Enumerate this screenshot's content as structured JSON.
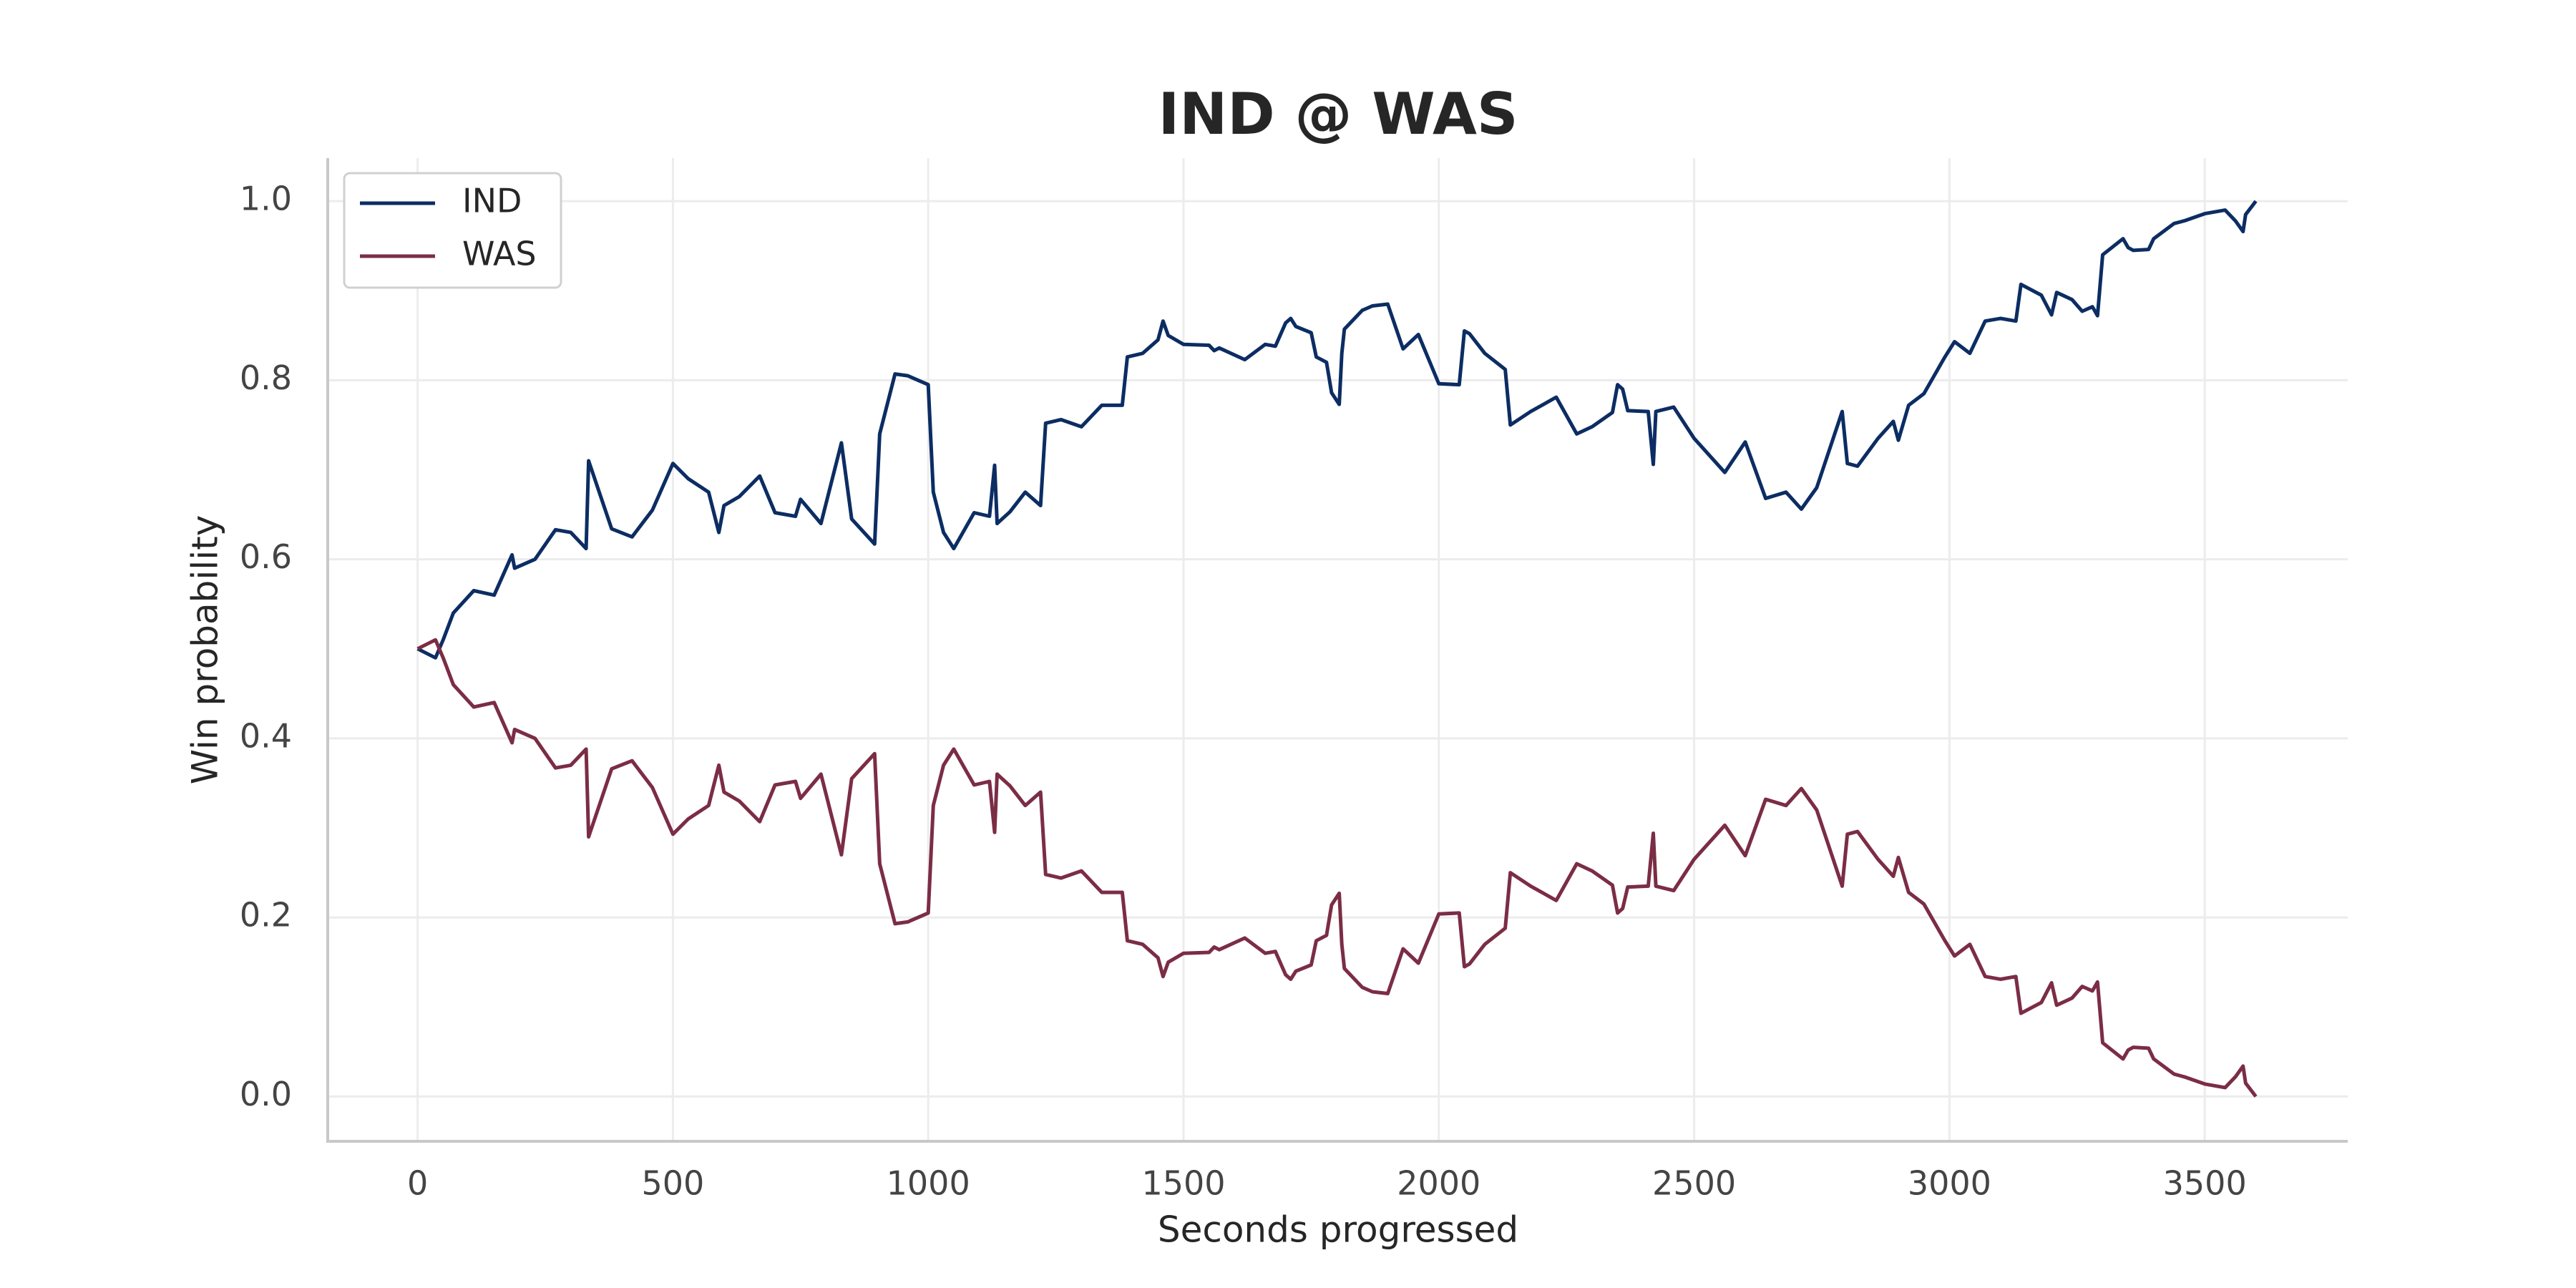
{
  "chart_data": {
    "type": "line",
    "title": "IND @ WAS",
    "x_label": "Seconds progressed",
    "y_label": "Win probability",
    "x": [
      0,
      35,
      50,
      70,
      110,
      150,
      185,
      190,
      230,
      270,
      300,
      330,
      335,
      380,
      420,
      460,
      500,
      530,
      570,
      590,
      600,
      630,
      670,
      700,
      740,
      750,
      790,
      830,
      850,
      895,
      905,
      935,
      960,
      1000,
      1010,
      1030,
      1050,
      1090,
      1120,
      1130,
      1135,
      1160,
      1190,
      1220,
      1230,
      1260,
      1300,
      1340,
      1380,
      1390,
      1420,
      1450,
      1460,
      1470,
      1500,
      1550,
      1560,
      1570,
      1620,
      1660,
      1680,
      1700,
      1710,
      1720,
      1750,
      1760,
      1780,
      1790,
      1805,
      1810,
      1815,
      1850,
      1870,
      1900,
      1930,
      1960,
      2000,
      2040,
      2050,
      2060,
      2090,
      2130,
      2140,
      2180,
      2230,
      2270,
      2300,
      2340,
      2350,
      2360,
      2370,
      2410,
      2420,
      2425,
      2460,
      2500,
      2560,
      2600,
      2640,
      2680,
      2710,
      2740,
      2790,
      2800,
      2820,
      2860,
      2890,
      2900,
      2920,
      2950,
      2990,
      3010,
      3040,
      3070,
      3100,
      3130,
      3140,
      3180,
      3200,
      3210,
      3240,
      3260,
      3280,
      3290,
      3300,
      3340,
      3350,
      3360,
      3390,
      3400,
      3440,
      3460,
      3500,
      3540,
      3560,
      3575,
      3580,
      3600
    ],
    "series": [
      {
        "name": "IND",
        "color": "#0c2d63",
        "values": [
          0.5,
          0.49,
          0.51,
          0.54,
          0.565,
          0.56,
          0.605,
          0.59,
          0.6,
          0.633,
          0.63,
          0.612,
          0.71,
          0.634,
          0.625,
          0.655,
          0.707,
          0.69,
          0.675,
          0.63,
          0.66,
          0.67,
          0.693,
          0.652,
          0.648,
          0.667,
          0.64,
          0.73,
          0.645,
          0.617,
          0.74,
          0.807,
          0.805,
          0.795,
          0.675,
          0.63,
          0.612,
          0.652,
          0.648,
          0.705,
          0.64,
          0.653,
          0.675,
          0.66,
          0.752,
          0.756,
          0.748,
          0.772,
          0.772,
          0.826,
          0.83,
          0.845,
          0.866,
          0.85,
          0.84,
          0.839,
          0.833,
          0.836,
          0.823,
          0.84,
          0.838,
          0.864,
          0.869,
          0.86,
          0.853,
          0.826,
          0.82,
          0.786,
          0.773,
          0.83,
          0.857,
          0.878,
          0.883,
          0.885,
          0.835,
          0.851,
          0.796,
          0.795,
          0.855,
          0.852,
          0.83,
          0.812,
          0.75,
          0.765,
          0.781,
          0.74,
          0.748,
          0.764,
          0.795,
          0.79,
          0.766,
          0.765,
          0.706,
          0.765,
          0.77,
          0.735,
          0.697,
          0.731,
          0.668,
          0.675,
          0.656,
          0.68,
          0.765,
          0.707,
          0.704,
          0.735,
          0.754,
          0.733,
          0.772,
          0.785,
          0.825,
          0.843,
          0.83,
          0.866,
          0.869,
          0.866,
          0.907,
          0.895,
          0.873,
          0.898,
          0.89,
          0.877,
          0.882,
          0.872,
          0.94,
          0.958,
          0.948,
          0.945,
          0.946,
          0.958,
          0.975,
          0.978,
          0.986,
          0.99,
          0.978,
          0.966,
          0.985,
          1.0
        ]
      },
      {
        "name": "WAS",
        "color": "#7b2d45",
        "values": [
          0.5,
          0.51,
          0.49,
          0.46,
          0.435,
          0.44,
          0.395,
          0.41,
          0.4,
          0.367,
          0.37,
          0.388,
          0.29,
          0.366,
          0.375,
          0.345,
          0.293,
          0.31,
          0.325,
          0.37,
          0.34,
          0.33,
          0.307,
          0.348,
          0.352,
          0.333,
          0.36,
          0.27,
          0.355,
          0.383,
          0.26,
          0.193,
          0.195,
          0.205,
          0.325,
          0.37,
          0.388,
          0.348,
          0.352,
          0.295,
          0.36,
          0.347,
          0.325,
          0.34,
          0.248,
          0.244,
          0.252,
          0.228,
          0.228,
          0.174,
          0.17,
          0.155,
          0.134,
          0.15,
          0.16,
          0.161,
          0.167,
          0.164,
          0.177,
          0.16,
          0.162,
          0.136,
          0.131,
          0.14,
          0.147,
          0.174,
          0.18,
          0.214,
          0.227,
          0.17,
          0.143,
          0.122,
          0.117,
          0.115,
          0.165,
          0.149,
          0.204,
          0.205,
          0.145,
          0.148,
          0.17,
          0.188,
          0.25,
          0.235,
          0.219,
          0.26,
          0.252,
          0.236,
          0.205,
          0.21,
          0.234,
          0.235,
          0.294,
          0.235,
          0.23,
          0.265,
          0.303,
          0.269,
          0.332,
          0.325,
          0.344,
          0.32,
          0.235,
          0.293,
          0.296,
          0.265,
          0.246,
          0.267,
          0.228,
          0.215,
          0.175,
          0.157,
          0.17,
          0.134,
          0.131,
          0.134,
          0.093,
          0.105,
          0.127,
          0.102,
          0.11,
          0.123,
          0.118,
          0.128,
          0.06,
          0.042,
          0.052,
          0.055,
          0.054,
          0.042,
          0.025,
          0.022,
          0.014,
          0.01,
          0.022,
          0.034,
          0.015,
          0.0
        ]
      }
    ],
    "xlim": [
      -176,
      3780
    ],
    "ylim": [
      -0.05,
      1.048
    ],
    "xticks": [
      0,
      500,
      1000,
      1500,
      2000,
      2500,
      3000,
      3500
    ],
    "yticks": [
      {
        "value": 0,
        "label": "0.0"
      },
      0.2,
      0.4,
      0.6,
      0.8,
      {
        "value": 1,
        "label": "1.0"
      }
    ],
    "grid": true,
    "legend": "upper left"
  }
}
